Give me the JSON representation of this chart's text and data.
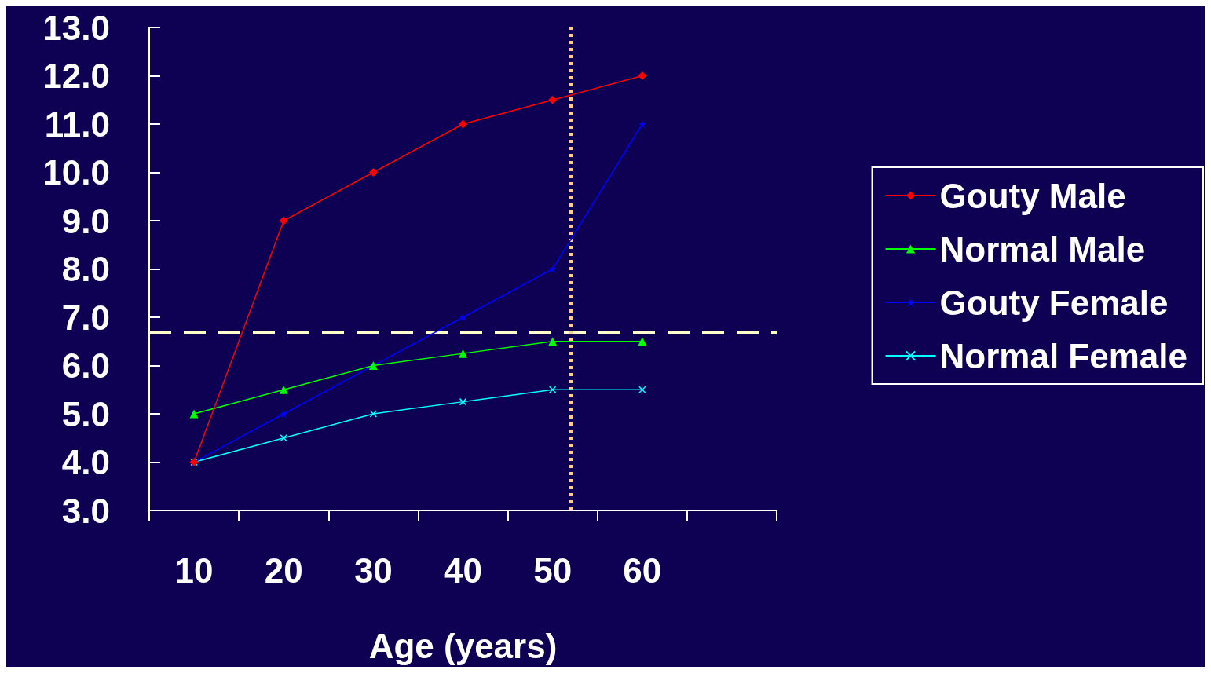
{
  "chart_data": {
    "type": "line",
    "xlabel": "Age (years)",
    "x": [
      10,
      20,
      30,
      40,
      50,
      60
    ],
    "xlim": [
      5,
      75
    ],
    "xticks": [
      {
        "value": 5,
        "label": null
      },
      {
        "value": 10,
        "label": "10"
      },
      {
        "value": 15,
        "label": null
      },
      {
        "value": 20,
        "label": "20"
      },
      {
        "value": 25,
        "label": null
      },
      {
        "value": 30,
        "label": "30"
      },
      {
        "value": 35,
        "label": null
      },
      {
        "value": 40,
        "label": "40"
      },
      {
        "value": 45,
        "label": null
      },
      {
        "value": 50,
        "label": "50"
      },
      {
        "value": 55,
        "label": null
      },
      {
        "value": 60,
        "label": "60"
      },
      {
        "value": 65,
        "label": null
      },
      {
        "value": 75,
        "label": null
      }
    ],
    "ylim": [
      3,
      13
    ],
    "yticks": [
      {
        "value": 3,
        "label": "3.0"
      },
      {
        "value": 4,
        "label": "4.0"
      },
      {
        "value": 5,
        "label": "5.0"
      },
      {
        "value": 6,
        "label": "6.0"
      },
      {
        "value": 7,
        "label": "7.0"
      },
      {
        "value": 8,
        "label": "8.0"
      },
      {
        "value": 9,
        "label": "9.0"
      },
      {
        "value": 10,
        "label": "10.0"
      },
      {
        "value": 11,
        "label": "11.0"
      },
      {
        "value": 12,
        "label": "12.0"
      },
      {
        "value": 13,
        "label": "13.0"
      }
    ],
    "series": [
      {
        "name": "Gouty Male",
        "color": "#ff0000",
        "marker": "diamond",
        "values": [
          4,
          9,
          10,
          11,
          11.5,
          12
        ]
      },
      {
        "name": "Normal Male",
        "color": "#00ff00",
        "marker": "triangle",
        "values": [
          5,
          5.5,
          6,
          6.25,
          6.5,
          6.5
        ]
      },
      {
        "name": "Gouty Female",
        "color": "#0000ff",
        "marker": "star",
        "values": [
          4,
          5,
          6,
          7,
          8,
          11
        ]
      },
      {
        "name": "Normal Female",
        "color": "#00ffff",
        "marker": "cross",
        "values": [
          4,
          4.5,
          5,
          5.25,
          5.5,
          5.5
        ]
      }
    ],
    "ref_lines": [
      {
        "axis": "y",
        "value": 6.7,
        "color": "#ffffcc",
        "line_style": "dashed"
      },
      {
        "axis": "x",
        "value": 52,
        "color": "#ffcc99",
        "line_style": "dotted"
      }
    ],
    "grid": false,
    "legend": "right",
    "line_style": "solid"
  }
}
